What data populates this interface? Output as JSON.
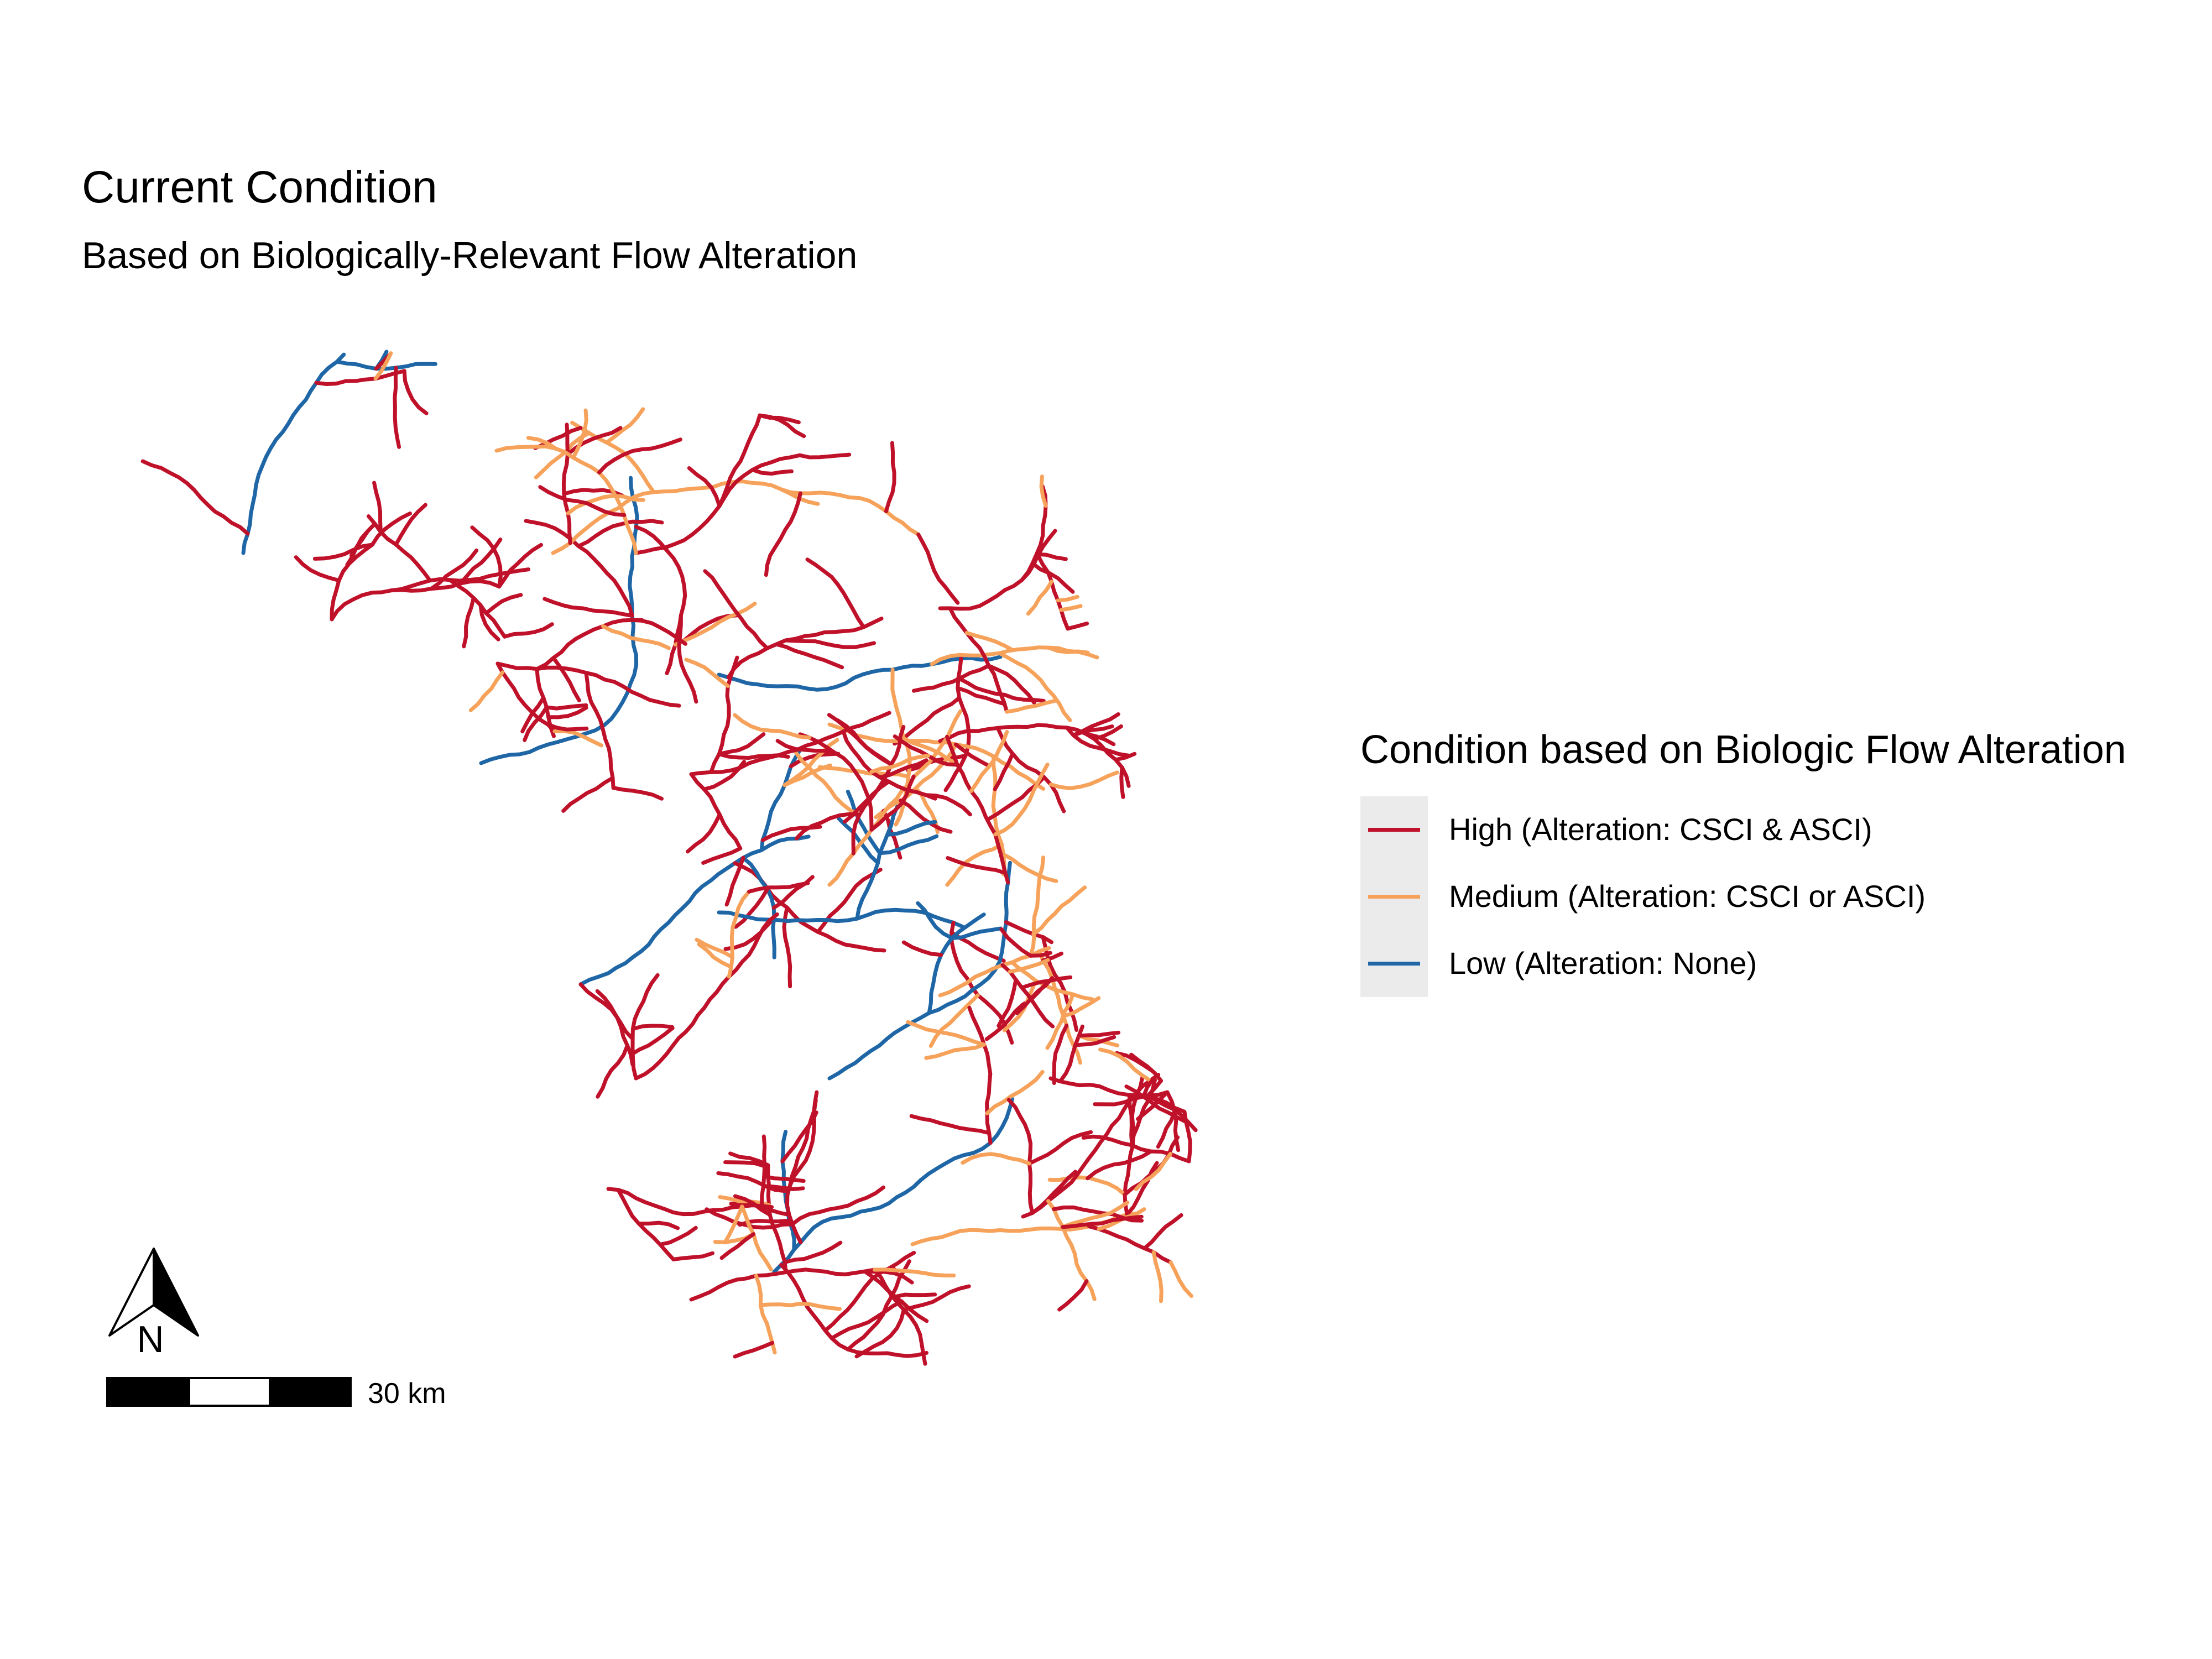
{
  "title": "Current Condition",
  "subtitle": "Based on Biologically-Relevant Flow Alteration",
  "legend": {
    "title": "Condition based on Biologic Flow Alteration",
    "items": [
      {
        "label": "High (Alteration: CSCI & ASCI)",
        "color": "#c0112a"
      },
      {
        "label": "Medium (Alteration: CSCI or ASCI)",
        "color": "#f6a25b"
      },
      {
        "label": "Low (Alteration: None)",
        "color": "#1f66a6"
      }
    ]
  },
  "north_arrow": {
    "label": "N",
    "icon": "north-arrow-icon"
  },
  "scale_bar": {
    "label": "30 km"
  }
}
